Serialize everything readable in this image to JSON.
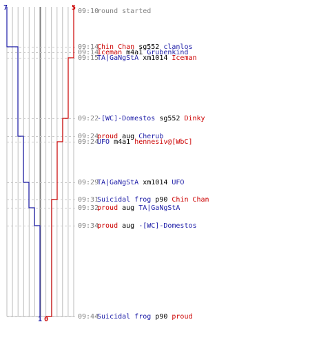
{
  "chart_data": {
    "type": "line",
    "team_blue_start": "7",
    "team_red_start": "5",
    "team_blue_end": "1",
    "team_red_end": "0",
    "colors": {
      "blue": "#1a1aa6",
      "red": "#cc0000",
      "gray_text": "#808080",
      "grid": "#bdbdbd",
      "center": "#7f7f7f",
      "dash": "#c8c8c8"
    },
    "events": [
      {
        "time": "09:10",
        "segments": [
          {
            "text": "round started",
            "color": "gray"
          }
        ]
      },
      {
        "time": "09:14",
        "segments": [
          {
            "text": "Chin Chan",
            "color": "red"
          },
          {
            "text": " sg552 ",
            "color": "black"
          },
          {
            "text": "clanlos",
            "color": "blue"
          }
        ]
      },
      {
        "time": "09:14",
        "segments": [
          {
            "text": "Iceman",
            "color": "red"
          },
          {
            "text": " m4a1 ",
            "color": "black"
          },
          {
            "text": "Grubenkind",
            "color": "blue"
          }
        ]
      },
      {
        "time": "09:15",
        "segments": [
          {
            "text": "TA|GaNgStA",
            "color": "blue"
          },
          {
            "text": " xm1014 ",
            "color": "black"
          },
          {
            "text": "Iceman",
            "color": "red"
          }
        ]
      },
      {
        "time": "09:22",
        "segments": [
          {
            "text": "-[WC]-Domestos",
            "color": "blue"
          },
          {
            "text": " sg552 ",
            "color": "black"
          },
          {
            "text": "Dinky",
            "color": "red"
          }
        ]
      },
      {
        "time": "09:24",
        "segments": [
          {
            "text": "proud",
            "color": "red"
          },
          {
            "text": " aug ",
            "color": "black"
          },
          {
            "text": "Cherub",
            "color": "blue"
          }
        ]
      },
      {
        "time": "09:24",
        "segments": [
          {
            "text": "UFO",
            "color": "blue"
          },
          {
            "text": " m4a1 ",
            "color": "black"
          },
          {
            "text": "hennesiv@[WbC]",
            "color": "red"
          }
        ]
      },
      {
        "time": "09:29",
        "segments": [
          {
            "text": "TA|GaNgStA",
            "color": "blue"
          },
          {
            "text": " xm1014 ",
            "color": "black"
          },
          {
            "text": "UFO",
            "color": "blue"
          }
        ]
      },
      {
        "time": "09:31",
        "segments": [
          {
            "text": "Suicidal frog",
            "color": "blue"
          },
          {
            "text": " p90 ",
            "color": "black"
          },
          {
            "text": "Chin Chan",
            "color": "red"
          }
        ]
      },
      {
        "time": "09:32",
        "segments": [
          {
            "text": "proud",
            "color": "red"
          },
          {
            "text": " aug ",
            "color": "black"
          },
          {
            "text": "TA|GaNgStA",
            "color": "blue"
          }
        ]
      },
      {
        "time": "09:34",
        "segments": [
          {
            "text": "proud",
            "color": "red"
          },
          {
            "text": " aug ",
            "color": "black"
          },
          {
            "text": "-[WC]-Domestos",
            "color": "blue"
          }
        ]
      },
      {
        "time": "09:44",
        "segments": [
          {
            "text": "Suicidal frog",
            "color": "blue"
          },
          {
            "text": " p90 ",
            "color": "black"
          },
          {
            "text": "proud",
            "color": "red"
          }
        ]
      }
    ],
    "series": [
      {
        "color": "blue",
        "values": [
          7,
          6,
          5,
          5,
          5,
          4,
          4,
          3,
          3,
          2,
          1,
          1
        ]
      },
      {
        "color": "red",
        "values": [
          5,
          5,
          5,
          4,
          3,
          3,
          2,
          2,
          1,
          1,
          1,
          0
        ]
      }
    ]
  }
}
